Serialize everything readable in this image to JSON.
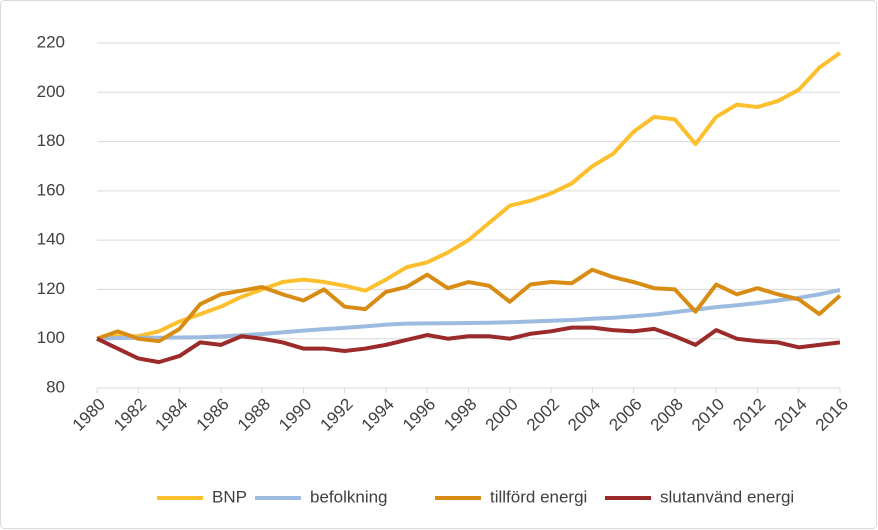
{
  "chart_data": {
    "type": "line",
    "x": [
      1980,
      1981,
      1982,
      1983,
      1984,
      1985,
      1986,
      1987,
      1988,
      1989,
      1990,
      1991,
      1992,
      1993,
      1994,
      1995,
      1996,
      1997,
      1998,
      1999,
      2000,
      2001,
      2002,
      2003,
      2004,
      2005,
      2006,
      2007,
      2008,
      2009,
      2010,
      2011,
      2012,
      2013,
      2014,
      2015,
      2016
    ],
    "xlim": [
      1980,
      2016
    ],
    "xticks": [
      1980,
      1982,
      1984,
      1986,
      1988,
      1990,
      1992,
      1994,
      1996,
      1998,
      2000,
      2002,
      2004,
      2006,
      2008,
      2010,
      2012,
      2014,
      2016
    ],
    "ylim": [
      80,
      220
    ],
    "yticks": [
      80,
      100,
      120,
      140,
      160,
      180,
      200,
      220
    ],
    "grid": true,
    "legend": "bottom",
    "series": [
      {
        "name": "BNP",
        "color": "#fcc02e",
        "values": [
          100,
          101,
          101,
          103,
          107,
          110,
          113,
          117,
          120,
          123,
          124,
          123,
          121.5,
          119.5,
          124,
          129,
          131,
          135,
          140,
          147,
          154,
          156,
          159,
          163,
          170,
          175,
          184,
          190,
          189,
          179,
          190,
          195,
          194,
          196.5,
          201,
          210,
          216
        ]
      },
      {
        "name": "befolkning",
        "color": "#9dbbe0",
        "values": [
          100,
          100.3,
          100.4,
          100.4,
          100.5,
          100.6,
          100.9,
          101.4,
          101.9,
          102.6,
          103.3,
          103.9,
          104.4,
          105,
          105.7,
          106.1,
          106.2,
          106.3,
          106.4,
          106.5,
          106.7,
          107,
          107.3,
          107.6,
          108.1,
          108.5,
          109.1,
          109.8,
          110.8,
          111.8,
          112.8,
          113.6,
          114.5,
          115.5,
          116.6,
          118,
          119.8
        ]
      },
      {
        "name": "tillförd energi",
        "color": "#d98c14",
        "values": [
          100,
          103,
          100,
          99,
          104,
          114,
          118,
          119.5,
          121,
          118,
          115.5,
          120,
          113,
          112,
          119,
          121,
          126,
          120.5,
          123,
          121.5,
          115,
          122,
          123,
          122.5,
          128,
          125,
          123,
          120.5,
          120,
          111,
          122,
          118,
          120.5,
          118,
          116,
          110,
          117.5
        ]
      },
      {
        "name": "slutanvänd energi",
        "color": "#9b2a2a",
        "values": [
          100,
          96,
          92,
          90.5,
          93,
          98.5,
          97.5,
          101,
          100,
          98.5,
          96,
          96,
          95,
          96,
          97.5,
          99.5,
          101.5,
          100,
          101,
          101,
          100,
          102,
          103,
          104.5,
          104.5,
          103.5,
          103,
          104,
          101,
          97.5,
          103.5,
          100,
          99,
          98.5,
          96.5,
          97.5,
          98.5
        ]
      }
    ]
  }
}
